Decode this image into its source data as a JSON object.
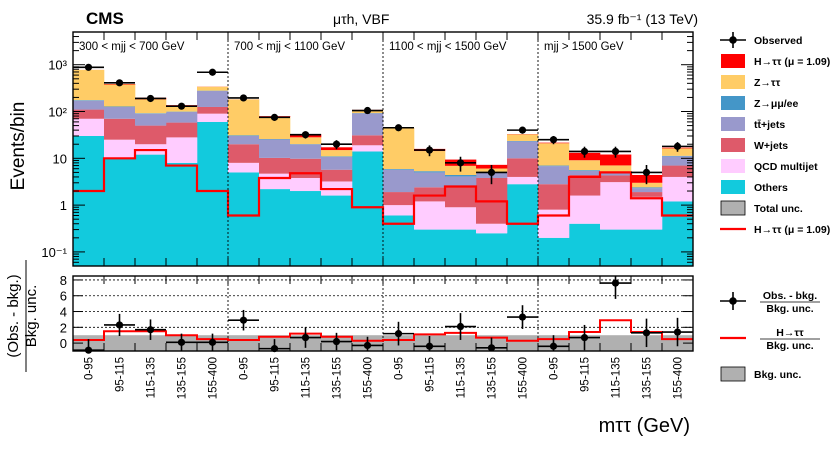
{
  "header": {
    "experiment": "CMS",
    "channel": "μτh, VBF",
    "luminosity": "35.9 fb⁻¹ (13 TeV)"
  },
  "colors": {
    "signal": "#ff0000",
    "ztt": "#ffcc66",
    "zll": "#4496c8",
    "ttbar": "#9999cc",
    "wjets": "#de5a6a",
    "qcd": "#ffccff",
    "others": "#12cadd",
    "total_unc": "#b0b0b0",
    "signal_line": "#ff0000",
    "observed": "#000000"
  },
  "chart_data": [
    {
      "type": "bar",
      "stacked": true,
      "yscale": "log",
      "ylabel": "Events/bin",
      "ylim": [
        0.05,
        5000
      ],
      "ytick_labels": [
        "10⁻¹",
        "1",
        "10",
        "10²",
        "10³"
      ],
      "ytick_values": [
        0.1,
        1,
        10,
        100,
        1000
      ],
      "bin_labels": [
        "0-95",
        "95-115",
        "115-135",
        "135-155",
        "155-400",
        "0-95",
        "95-115",
        "115-135",
        "135-155",
        "155-400",
        "0-95",
        "95-115",
        "115-135",
        "135-155",
        "155-400",
        "0-95",
        "95-115",
        "115-135",
        "135-155",
        "155-400"
      ],
      "mjj_regions": [
        "300 < mjj < 700 GeV",
        "700 < mjj < 1100 GeV",
        "1100 < mjj < 1500 GeV",
        "mjj > 1500 GeV"
      ],
      "series": [
        {
          "name": "Others",
          "key": "others",
          "values": [
            30,
            10,
            12,
            8,
            60,
            5,
            2.2,
            2.0,
            1.6,
            14,
            0.6,
            0.3,
            0.3,
            0.25,
            2.8,
            0.2,
            0.4,
            0.3,
            0.3,
            1.2
          ]
        },
        {
          "name": "QCD multijet",
          "key": "qcd",
          "values": [
            40,
            15,
            8,
            20,
            30,
            3,
            2.5,
            1.8,
            1.6,
            5,
            0.4,
            0.9,
            0.6,
            0.15,
            1.2,
            0.6,
            1.2,
            2.8,
            1.2,
            2.8
          ]
        },
        {
          "name": "W+jets",
          "key": "wjets",
          "values": [
            40,
            45,
            30,
            30,
            35,
            12,
            5.5,
            6,
            2.5,
            12,
            0.9,
            1.2,
            1.6,
            3.4,
            6,
            2.0,
            2.8,
            1.2,
            0.4,
            3
          ]
        },
        {
          "name": "tt̄+jets",
          "key": "ttbar",
          "values": [
            60,
            55,
            40,
            40,
            150,
            10,
            15,
            10,
            5,
            60,
            3.8,
            2.6,
            1.6,
            1.2,
            13,
            4,
            1,
            0.6,
            0.4,
            4
          ]
        },
        {
          "name": "Z→μμ/ee",
          "key": "zll",
          "values": [
            5,
            3,
            2,
            1.5,
            4,
            1.0,
            0.6,
            0.3,
            0.3,
            1.5,
            0.2,
            0.3,
            0.3,
            0.15,
            0.5,
            0.2,
            0.2,
            0.15,
            0.1,
            0.3
          ]
        },
        {
          "name": "Z→ττ",
          "key": "ztt",
          "values": [
            600,
            250,
            90,
            30,
            60,
            150,
            50,
            8,
            4,
            15,
            38,
            9,
            2.5,
            0.9,
            9,
            14,
            3.5,
            2,
            0.6,
            5
          ]
        },
        {
          "name": "H→ττ (μ = 1.09)",
          "key": "signal",
          "values": [
            2,
            10,
            15,
            7,
            2,
            0.6,
            3.8,
            4.8,
            2.2,
            0.9,
            0.4,
            1.6,
            2.5,
            1.2,
            0.4,
            0.6,
            4,
            5,
            1.4,
            0.6
          ]
        }
      ],
      "signal_line": [
        2,
        10,
        15,
        7,
        2,
        0.6,
        3.8,
        4.8,
        2.2,
        0.9,
        0.4,
        1.6,
        2.5,
        1.2,
        0.4,
        0.6,
        4,
        5,
        1.4,
        0.6
      ],
      "observed": {
        "values": [
          880,
          410,
          190,
          130,
          690,
          195,
          75,
          32,
          20,
          105,
          45,
          15,
          8,
          5,
          40,
          25,
          14,
          14,
          5,
          18
        ],
        "errors": [
          30,
          20,
          14,
          11,
          26,
          14,
          8.6,
          5.6,
          4.4,
          10,
          6.7,
          3.9,
          2.8,
          2.2,
          6.3,
          5,
          3.7,
          3.7,
          2.2,
          4.2
        ]
      },
      "legend": {
        "position": "right",
        "entries": [
          "Observed",
          "H→ττ (μ = 1.09)",
          "Z→ττ",
          "Z→μμ/ee",
          "tt̄+jets",
          "W+jets",
          "QCD multijet",
          "Others",
          "Total unc.",
          "H→ττ (μ = 1.09)"
        ]
      }
    },
    {
      "type": "ratio",
      "ylabel_top": "(Obs. - bkg.)",
      "ylabel_bottom": "Bkg. unc.",
      "ylim": [
        -1,
        8.5
      ],
      "ytick_values": [
        0,
        2,
        4,
        6,
        8
      ],
      "ytick_labels": [
        "0",
        "2",
        "4",
        "6",
        "8"
      ],
      "xlabel": "mττ (GeV)",
      "observed": {
        "values": [
          -0.9,
          2.3,
          1.7,
          0.1,
          0.1,
          2.9,
          -0.7,
          0.7,
          0.2,
          -0.3,
          1.2,
          -0.4,
          2.1,
          -0.6,
          3.3,
          -0.4,
          0.7,
          7.6,
          1.3,
          1.4
        ],
        "errors": [
          1.4,
          1.4,
          1.3,
          1.1,
          1.1,
          1.3,
          1.2,
          1.3,
          1.1,
          1.1,
          1.5,
          1.3,
          1.7,
          1.3,
          1.5,
          1.4,
          1.6,
          2.0,
          1.8,
          1.8
        ]
      },
      "signal": [
        0.4,
        1.5,
        1.5,
        1.0,
        0.5,
        0.4,
        0.8,
        1.2,
        0.8,
        0.3,
        0.4,
        1.1,
        1.3,
        0.7,
        0.3,
        0.5,
        1.4,
        2.9,
        1.4,
        0.5
      ],
      "unc_band": [
        1,
        1,
        1,
        1,
        1,
        1,
        1,
        1,
        1,
        1,
        1,
        1,
        1,
        1,
        1,
        1,
        1,
        1,
        1,
        1
      ],
      "legend": {
        "observed_top": "Obs. - bkg.",
        "observed_bottom": "Bkg. unc.",
        "signal_top": "H→ττ",
        "signal_bottom": "Bkg. unc.",
        "unc": "Bkg. unc."
      }
    }
  ]
}
